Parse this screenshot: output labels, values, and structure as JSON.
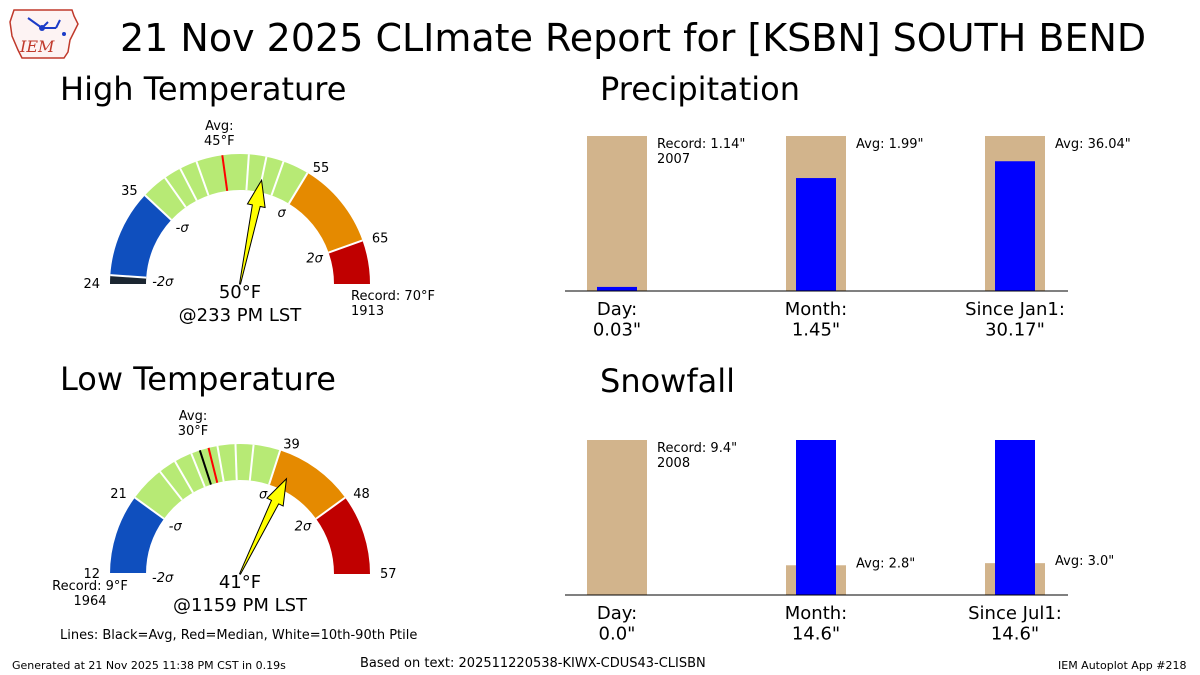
{
  "header": {
    "title": "21 Nov 2025 CLImate Report for [KSBN] SOUTH BEND",
    "logo_text": "IEM"
  },
  "colors": {
    "sigma_minus2_below": "#1b2631",
    "sigma_minus2_to_minus1": "#0f4fbe",
    "sigma_minus1_to_plus1": "#b7ea75",
    "sigma_plus1_to_plus2": "#e58a00",
    "sigma_plus2_above": "#c00000",
    "needle": "#ffff00",
    "precip_avg_bar": "#d2b48c",
    "observed_bar": "#0000ff",
    "avg_line": "#000000",
    "median_line": "#ff0000",
    "percentile_line": "#ffffff"
  },
  "chart_data": [
    {
      "type": "gauge",
      "title": "High Temperature",
      "min": 24,
      "max": 70,
      "sigma_ticks": [
        {
          "label": "-2σ",
          "value": 25
        },
        {
          "label": "-σ",
          "value": 35
        },
        {
          "label": "σ",
          "value": 55
        },
        {
          "label": "2σ",
          "value": 65
        }
      ],
      "value_ticks": [
        {
          "label": "24",
          "value": 24
        },
        {
          "label": "35",
          "value": 35
        },
        {
          "label": "55",
          "value": 55
        },
        {
          "label": "65",
          "value": 65
        }
      ],
      "avg": 45,
      "median": 45,
      "avg_label": "Avg:\n45°F",
      "percentile_lines": [
        38,
        40,
        42,
        48,
        50,
        52
      ],
      "observed": 50,
      "observed_label": "50°F",
      "observed_time": "@233 PM LST",
      "record_label": "Record: 70°F\n1913"
    },
    {
      "type": "gauge",
      "title": "Low Temperature",
      "min": 12,
      "max": 57,
      "sigma_ticks": [
        {
          "label": "-2σ",
          "value": 12
        },
        {
          "label": "-σ",
          "value": 21
        },
        {
          "label": "σ",
          "value": 39
        },
        {
          "label": "2σ",
          "value": 48
        }
      ],
      "value_ticks": [
        {
          "label": "12",
          "value": 12
        },
        {
          "label": "21",
          "value": 21
        },
        {
          "label": "39",
          "value": 39
        },
        {
          "label": "48",
          "value": 48
        },
        {
          "label": "57",
          "value": 57
        }
      ],
      "avg": 30,
      "median": 31,
      "avg_label": "Avg:\n30°F",
      "percentile_lines": [
        25,
        27,
        29,
        32,
        34,
        36
      ],
      "observed": 41,
      "observed_label": "41°F",
      "observed_time": "@1159 PM LST",
      "record_label": "Record: 9°F\n1964"
    },
    {
      "type": "bar",
      "title": "Precipitation",
      "categories": [
        "Day:\n0.03\"",
        "Month:\n1.45\"",
        "Since Jan1:\n30.17\""
      ],
      "series": [
        {
          "name": "Average",
          "values": [
            1.14,
            1.99,
            36.04
          ]
        },
        {
          "name": "Observed",
          "values": [
            0.03,
            1.45,
            30.17
          ]
        }
      ],
      "annotations": [
        "Record: 1.14\"\n2007",
        "Avg: 1.99\"",
        "Avg: 36.04\""
      ]
    },
    {
      "type": "bar",
      "title": "Snowfall",
      "categories": [
        "Day:\n0.0\"",
        "Month:\n14.6\"",
        "Since Jul1:\n14.6\""
      ],
      "series": [
        {
          "name": "Average",
          "values": [
            9.4,
            2.8,
            3.0
          ]
        },
        {
          "name": "Observed",
          "values": [
            0.0,
            14.6,
            14.6
          ]
        }
      ],
      "annotations": [
        "Record: 9.4\"\n2008",
        "Avg: 2.8\"",
        "Avg: 3.0\""
      ]
    }
  ],
  "footer": {
    "legend_note": "Lines: Black=Avg, Red=Median, White=10th-90th Ptile",
    "generated": "Generated at 21 Nov 2025 11:38 PM CST in 0.19s",
    "based_on": "Based on text: 202511220538-KIWX-CDUS43-CLISBN",
    "app": "IEM Autoplot App #218"
  }
}
